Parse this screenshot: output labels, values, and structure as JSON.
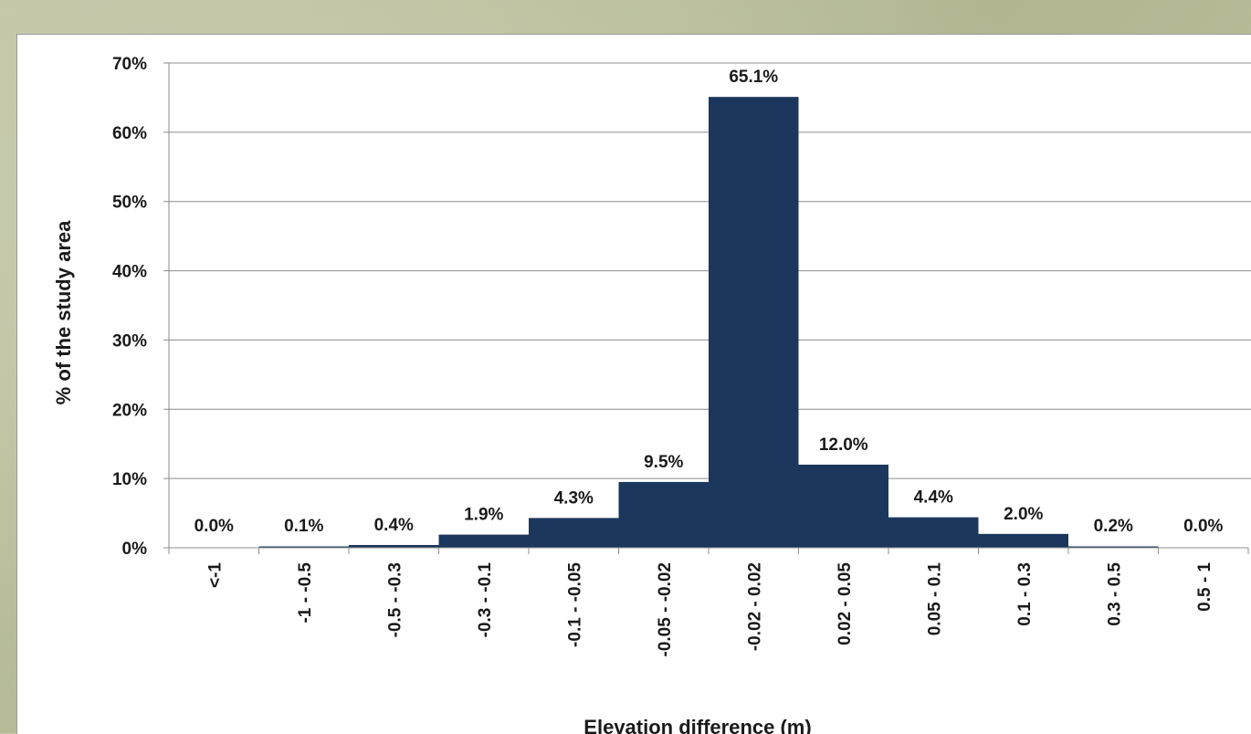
{
  "chart_data": {
    "type": "bar",
    "title": "",
    "xlabel": "Elevation difference (m)",
    "ylabel": "% of the study area",
    "ylim": [
      0,
      70
    ],
    "yticks": [
      "0%",
      "10%",
      "20%",
      "30%",
      "40%",
      "50%",
      "60%",
      "70%"
    ],
    "grid": true,
    "legend": "none",
    "bar_color": "#1c375d",
    "categories": [
      "<-1",
      "-1 - -0.5",
      "-0.5 - -0.3",
      "-0.3 - -0.1",
      "-0.1 - -0.05",
      "-0.05 - -0.02",
      "-0.02 - 0.02",
      "0.02 - 0.05",
      "0.05 - 0.1",
      "0.1 - 0.3",
      "0.3 - 0.5",
      "0.5 - 1"
    ],
    "values": [
      0.0,
      0.1,
      0.4,
      1.9,
      4.3,
      9.5,
      65.1,
      12.0,
      4.4,
      2.0,
      0.2,
      0.0
    ],
    "value_labels": [
      "0.0%",
      "0.1%",
      "0.4%",
      "1.9%",
      "4.3%",
      "9.5%",
      "65.1%",
      "12.0%",
      "4.4%",
      "2.0%",
      "0.2%",
      "0.0%"
    ]
  }
}
